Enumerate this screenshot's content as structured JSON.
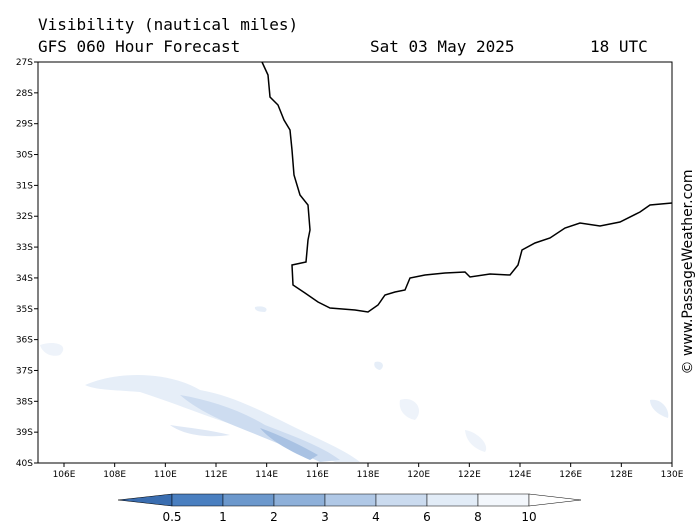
{
  "header": {
    "title": "Visibility (nautical miles)",
    "subtitle": "GFS 060 Hour Forecast",
    "date": "Sat 03 May 2025",
    "time": "18 UTC"
  },
  "map": {
    "lat_labels": [
      "27S",
      "28S",
      "29S",
      "30S",
      "31S",
      "32S",
      "33S",
      "34S",
      "35S",
      "36S",
      "37S",
      "38S",
      "39S",
      "40S"
    ],
    "lon_labels": [
      "106E",
      "108E",
      "110E",
      "112E",
      "114E",
      "116E",
      "118E",
      "120E",
      "122E",
      "124E",
      "126E",
      "128E",
      "130E"
    ]
  },
  "legend": {
    "levels": [
      0.5,
      1,
      2,
      3,
      4,
      6,
      8,
      10
    ],
    "colors": [
      "#3a6db0",
      "#4a7fc0",
      "#6c98cc",
      "#8eb0d9",
      "#b0c8e6",
      "#cbdbef",
      "#e2ecf7",
      "#f3f7fc",
      "#ffffff"
    ]
  },
  "watermark": "© www.PassageWeather.com"
}
